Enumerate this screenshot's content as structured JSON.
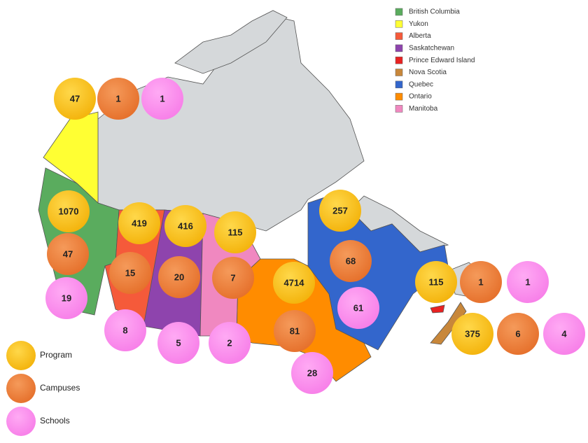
{
  "province_legend": [
    {
      "name": "British Columbia",
      "color": "#5aac5e"
    },
    {
      "name": "Yukon",
      "color": "#ffff33"
    },
    {
      "name": "Alberta",
      "color": "#f55a3a"
    },
    {
      "name": "Saskatchewan",
      "color": "#8e44ad"
    },
    {
      "name": "Prince Edward Island",
      "color": "#e82222"
    },
    {
      "name": "Nova Scotia",
      "color": "#c8873a"
    },
    {
      "name": "Quebec",
      "color": "#3366cc"
    },
    {
      "name": "Ontario",
      "color": "#ff8c00"
    },
    {
      "name": "Manitoba",
      "color": "#f088c0"
    }
  ],
  "measure_legend": [
    {
      "name": "Program",
      "color": "#fbbf1a"
    },
    {
      "name": "Campuses",
      "color": "#f0803a"
    },
    {
      "name": "Schools",
      "color": "#ff88ee"
    }
  ],
  "provinces": [
    {
      "program": 1070,
      "campuses": 47,
      "schools": 19
    },
    {
      "program": 47,
      "campuses": 1,
      "schools": 1
    },
    {
      "program": 419,
      "campuses": 15,
      "schools": 8
    },
    {
      "program": 416,
      "campuses": 20,
      "schools": 5
    },
    {
      "program": 115,
      "campuses": 1,
      "schools": 1
    },
    {
      "program": 375,
      "campuses": 6,
      "schools": 4
    },
    {
      "program": 257,
      "campuses": 68,
      "schools": 61
    },
    {
      "program": 4714,
      "campuses": 81,
      "schools": 28
    },
    {
      "program": 115,
      "campuses": 7,
      "schools": 2
    }
  ]
}
